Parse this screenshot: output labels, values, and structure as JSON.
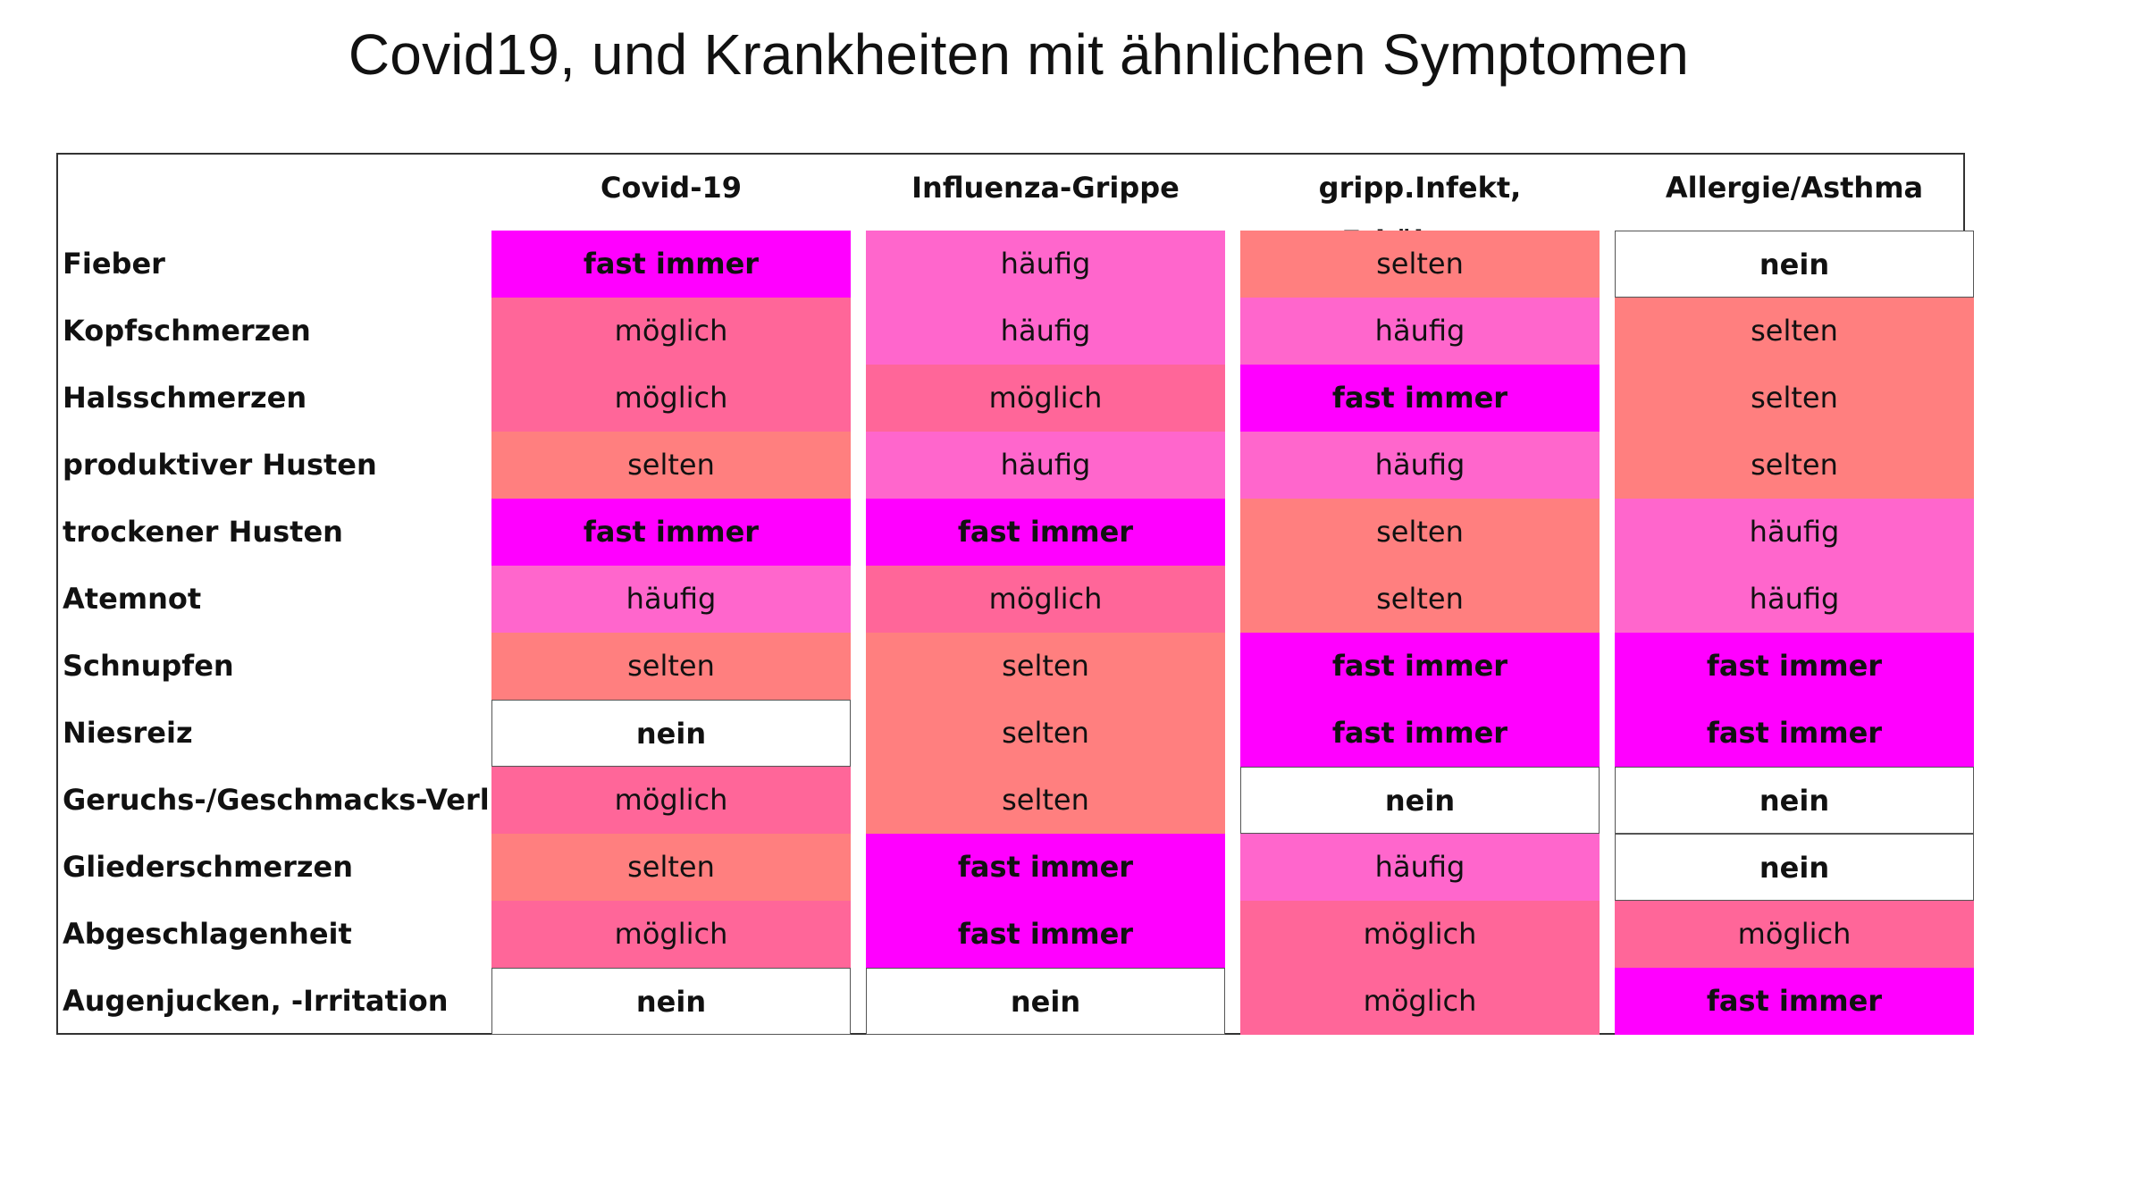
{
  "title": "Covid19,  und Krankheiten mit ähnlichen Symptomen",
  "colors": {
    "fast_immer": "#ff00ff",
    "haeufig": "#ff66cc",
    "moeglich": "#ff6699",
    "selten": "#ff7f7f",
    "nein": "#ffffff"
  },
  "chart_data": {
    "type": "table",
    "columns": [
      "Covid-19",
      "Influenza-Grippe",
      "gripp.Infekt, Erkältung",
      "Allergie/Asthma"
    ],
    "rows": [
      {
        "symptom": "Fieber",
        "values": [
          "fast immer",
          "häufig",
          "selten",
          "nein"
        ]
      },
      {
        "symptom": "Kopfschmerzen",
        "values": [
          "möglich",
          "häufig",
          "häufig",
          "selten"
        ]
      },
      {
        "symptom": "Halsschmerzen",
        "values": [
          "möglich",
          "möglich",
          "fast immer",
          "selten"
        ]
      },
      {
        "symptom": "produktiver Husten",
        "values": [
          "selten",
          "häufig",
          "häufig",
          "selten"
        ]
      },
      {
        "symptom": "trockener Husten",
        "values": [
          "fast immer",
          "fast immer",
          "selten",
          "häufig"
        ]
      },
      {
        "symptom": "Atemnot",
        "values": [
          "häufig",
          "möglich",
          "selten",
          "häufig"
        ]
      },
      {
        "symptom": "Schnupfen",
        "values": [
          "selten",
          "selten",
          "fast immer",
          "fast immer"
        ]
      },
      {
        "symptom": "Niesreiz",
        "values": [
          "nein",
          "selten",
          "fast immer",
          "fast immer"
        ]
      },
      {
        "symptom": "Geruchs-/Geschmacks-Verlust",
        "values": [
          "möglich",
          "selten",
          "nein",
          "nein"
        ]
      },
      {
        "symptom": "Gliederschmerzen",
        "values": [
          "selten",
          "fast immer",
          "häufig",
          "nein"
        ]
      },
      {
        "symptom": "Abgeschlagenheit",
        "values": [
          "möglich",
          "fast immer",
          "möglich",
          "möglich"
        ]
      },
      {
        "symptom": "Augenjucken, -Irritation",
        "values": [
          "nein",
          "nein",
          "möglich",
          "fast immer"
        ]
      }
    ]
  }
}
